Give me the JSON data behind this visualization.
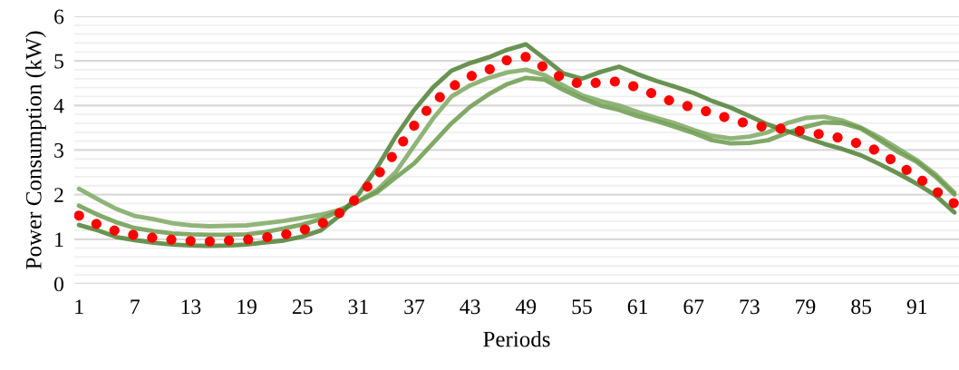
{
  "chart_data": {
    "type": "line",
    "xlabel": "Periods",
    "ylabel": "Power Consumption (kW)",
    "x": [
      1,
      3,
      5,
      7,
      9,
      11,
      13,
      15,
      17,
      19,
      21,
      23,
      25,
      27,
      29,
      31,
      33,
      35,
      37,
      39,
      41,
      43,
      45,
      47,
      49,
      51,
      53,
      55,
      57,
      59,
      61,
      63,
      65,
      67,
      69,
      71,
      73,
      75,
      77,
      79,
      81,
      83,
      85,
      87,
      89,
      91,
      93,
      95
    ],
    "xlim": [
      0.5,
      95.5
    ],
    "xticks": [
      1,
      7,
      13,
      19,
      25,
      31,
      37,
      43,
      49,
      55,
      61,
      67,
      73,
      79,
      85,
      91
    ],
    "ylim": [
      0,
      6
    ],
    "yticks": [
      0,
      {
        "value": 0.2,
        "label": null
      },
      {
        "value": 0.4,
        "label": null
      },
      {
        "value": 0.6,
        "label": null
      },
      {
        "value": 0.8,
        "label": null
      },
      1,
      {
        "value": 1.2,
        "label": null
      },
      {
        "value": 1.4,
        "label": null
      },
      {
        "value": 1.6,
        "label": null
      },
      {
        "value": 1.8,
        "label": null
      },
      2,
      {
        "value": 2.2,
        "label": null
      },
      {
        "value": 2.4,
        "label": null
      },
      {
        "value": 2.6,
        "label": null
      },
      {
        "value": 2.8,
        "label": null
      },
      3,
      {
        "value": 3.2,
        "label": null
      },
      {
        "value": 3.4,
        "label": null
      },
      {
        "value": 3.6,
        "label": null
      },
      {
        "value": 3.8,
        "label": null
      },
      4,
      {
        "value": 4.2,
        "label": null
      },
      {
        "value": 4.4,
        "label": null
      },
      {
        "value": 4.6,
        "label": null
      },
      {
        "value": 4.8,
        "label": null
      },
      5,
      {
        "value": 5.2,
        "label": null
      },
      {
        "value": 5.4,
        "label": null
      },
      {
        "value": 5.6,
        "label": null
      },
      {
        "value": 5.8,
        "label": null
      },
      6
    ],
    "grid": "y",
    "marker": "none",
    "series": [
      {
        "color": "#7ea862",
        "line_style": "solid",
        "values": [
          2.13,
          1.9,
          1.68,
          1.52,
          1.45,
          1.36,
          1.31,
          1.29,
          1.3,
          1.31,
          1.36,
          1.41,
          1.48,
          1.55,
          1.66,
          1.85,
          2.1,
          2.5,
          3.1,
          3.7,
          4.2,
          4.45,
          4.62,
          4.74,
          4.8,
          4.68,
          4.45,
          4.23,
          4.1,
          4.0,
          3.85,
          3.72,
          3.6,
          3.45,
          3.32,
          3.26,
          3.3,
          3.4,
          3.6,
          3.72,
          3.75,
          3.66,
          3.5,
          3.28,
          3.03,
          2.77,
          2.45,
          2.05
        ]
      },
      {
        "color": "#6c9a4e",
        "line_style": "solid",
        "values": [
          1.75,
          1.55,
          1.38,
          1.25,
          1.18,
          1.13,
          1.11,
          1.1,
          1.1,
          1.11,
          1.16,
          1.24,
          1.33,
          1.45,
          1.63,
          1.85,
          2.05,
          2.38,
          2.7,
          3.15,
          3.6,
          3.97,
          4.25,
          4.48,
          4.62,
          4.58,
          4.35,
          4.16,
          4.0,
          3.9,
          3.76,
          3.65,
          3.52,
          3.38,
          3.22,
          3.15,
          3.16,
          3.22,
          3.38,
          3.52,
          3.62,
          3.6,
          3.48,
          3.22,
          2.95,
          2.73,
          2.4,
          2.0
        ]
      },
      {
        "color": "#4f8034",
        "line_style": "solid",
        "values": [
          1.32,
          1.2,
          1.05,
          0.98,
          0.92,
          0.88,
          0.86,
          0.85,
          0.86,
          0.88,
          0.93,
          0.97,
          1.06,
          1.2,
          1.53,
          2.0,
          2.6,
          3.3,
          3.9,
          4.4,
          4.78,
          4.95,
          5.08,
          5.25,
          5.37,
          5.05,
          4.72,
          4.6,
          4.75,
          4.87,
          4.7,
          4.55,
          4.42,
          4.28,
          4.1,
          3.95,
          3.76,
          3.57,
          3.43,
          3.28,
          3.14,
          3.02,
          2.88,
          2.68,
          2.47,
          2.24,
          1.98,
          1.6
        ]
      },
      {
        "color": "#ff0000",
        "line_style": "dotted",
        "values": [
          1.53,
          1.33,
          1.18,
          1.09,
          1.03,
          0.99,
          0.96,
          0.95,
          0.97,
          0.99,
          1.04,
          1.1,
          1.2,
          1.34,
          1.59,
          1.95,
          2.42,
          2.95,
          3.55,
          4.05,
          4.41,
          4.65,
          4.8,
          5.02,
          5.09,
          4.85,
          4.6,
          4.47,
          4.52,
          4.54,
          4.4,
          4.23,
          4.06,
          3.95,
          3.83,
          3.69,
          3.58,
          3.5,
          3.47,
          3.41,
          3.34,
          3.26,
          3.12,
          2.96,
          2.67,
          2.4,
          2.08,
          1.8
        ]
      }
    ]
  }
}
